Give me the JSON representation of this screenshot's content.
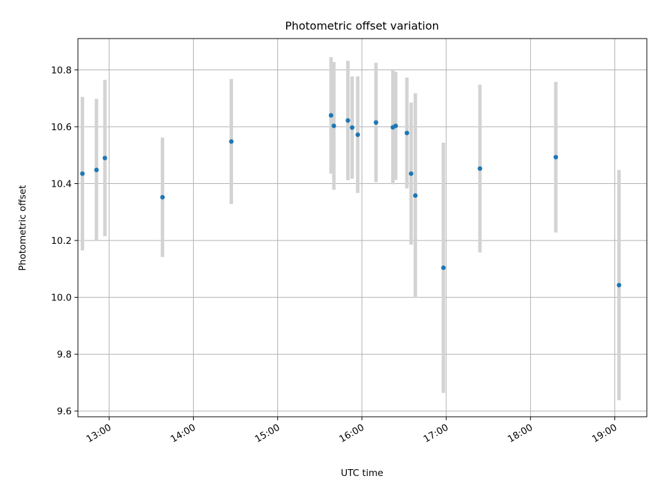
{
  "chart_data": {
    "type": "scatter",
    "title": "Photometric offset variation",
    "xlabel": "UTC time",
    "ylabel": "Photometric offset",
    "x_ticks": [
      "13:00",
      "14:00",
      "15:00",
      "16:00",
      "17:00",
      "18:00",
      "19:00"
    ],
    "x_tick_hours": [
      13,
      14,
      15,
      16,
      17,
      18,
      19
    ],
    "xlim_hours": [
      12.63,
      19.38
    ],
    "y_ticks": [
      "9.6",
      "9.8",
      "10.0",
      "10.2",
      "10.4",
      "10.6",
      "10.8"
    ],
    "ylim": [
      9.58,
      10.91
    ],
    "grid": true,
    "colors": {
      "point": "#1f77b4",
      "errorbar": "#d3d3d3",
      "grid": "#b0b0b0",
      "axes": "#000000"
    },
    "points": [
      {
        "time": "12:41",
        "y": 10.435,
        "err": 0.27
      },
      {
        "time": "12:51",
        "y": 10.448,
        "err": 0.25
      },
      {
        "time": "12:57",
        "y": 10.49,
        "err": 0.275
      },
      {
        "time": "13:38",
        "y": 10.352,
        "err": 0.21
      },
      {
        "time": "14:27",
        "y": 10.548,
        "err": 0.22
      },
      {
        "time": "15:38",
        "y": 10.64,
        "err": 0.205
      },
      {
        "time": "15:40",
        "y": 10.603,
        "err": 0.225
      },
      {
        "time": "15:50",
        "y": 10.622,
        "err": 0.21
      },
      {
        "time": "15:53",
        "y": 10.597,
        "err": 0.18
      },
      {
        "time": "15:57",
        "y": 10.572,
        "err": 0.205
      },
      {
        "time": "16:10",
        "y": 10.615,
        "err": 0.21
      },
      {
        "time": "16:22",
        "y": 10.598,
        "err": 0.2
      },
      {
        "time": "16:24",
        "y": 10.603,
        "err": 0.19
      },
      {
        "time": "16:32",
        "y": 10.578,
        "err": 0.195
      },
      {
        "time": "16:35",
        "y": 10.435,
        "err": 0.25
      },
      {
        "time": "16:38",
        "y": 10.358,
        "err": 0.36
      },
      {
        "time": "16:58",
        "y": 10.104,
        "err": 0.44
      },
      {
        "time": "17:24",
        "y": 10.453,
        "err": 0.295
      },
      {
        "time": "18:18",
        "y": 10.493,
        "err": 0.265
      },
      {
        "time": "19:03",
        "y": 10.043,
        "err": 0.405
      }
    ]
  }
}
